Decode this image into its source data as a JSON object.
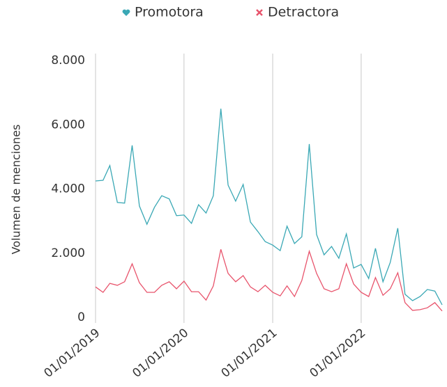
{
  "chart_data": {
    "type": "line",
    "y_label": "Volumen de menciones",
    "x": [
      "2019-01-01",
      "2019-02-01",
      "2019-03-01",
      "2019-04-01",
      "2019-05-01",
      "2019-06-01",
      "2019-07-01",
      "2019-08-01",
      "2019-09-01",
      "2019-10-01",
      "2019-11-01",
      "2019-12-01",
      "2020-01-01",
      "2020-02-01",
      "2020-03-01",
      "2020-04-01",
      "2020-05-01",
      "2020-06-01",
      "2020-07-01",
      "2020-08-01",
      "2020-09-01",
      "2020-10-01",
      "2020-11-01",
      "2020-12-01",
      "2021-01-01",
      "2021-02-01",
      "2021-03-01",
      "2021-04-01",
      "2021-05-01",
      "2021-06-01",
      "2021-07-01",
      "2021-08-01",
      "2021-09-01",
      "2021-10-01",
      "2021-11-01",
      "2021-12-01",
      "2022-01-01",
      "2022-02-01",
      "2022-03-01",
      "2022-04-01",
      "2022-05-01",
      "2022-06-01",
      "2022-07-01",
      "2022-08-01",
      "2022-09-01",
      "2022-10-01",
      "2022-11-01",
      "2022-12-01"
    ],
    "series": [
      {
        "name": "Promotora",
        "color": "#3aa8b5",
        "marker": "heart",
        "values": [
          4250,
          4270,
          4730,
          3580,
          3560,
          5360,
          3470,
          2900,
          3430,
          3790,
          3690,
          3170,
          3190,
          2930,
          3510,
          3250,
          3790,
          6500,
          4120,
          3620,
          4140,
          2970,
          2670,
          2360,
          2250,
          2080,
          2840,
          2300,
          2510,
          5400,
          2580,
          1950,
          2210,
          1840,
          2600,
          1540,
          1650,
          1210,
          2150,
          1110,
          1710,
          2780,
          720,
          520,
          650,
          870,
          820,
          390
        ]
      },
      {
        "name": "Detractora",
        "color": "#e8546c",
        "marker": "x",
        "values": [
          950,
          780,
          1060,
          1000,
          1110,
          1670,
          1080,
          780,
          780,
          1000,
          1110,
          890,
          1130,
          800,
          800,
          540,
          980,
          2120,
          1370,
          1110,
          1300,
          950,
          800,
          1000,
          780,
          670,
          980,
          650,
          1150,
          2060,
          1370,
          890,
          800,
          890,
          1670,
          1040,
          780,
          650,
          1240,
          690,
          890,
          1390,
          460,
          220,
          240,
          300,
          460,
          200
        ]
      }
    ],
    "xlim": [
      "2019-01-01",
      "2022-12-01"
    ],
    "xticks": [
      {
        "value": "2019-01-01",
        "label": "01/01/2019"
      },
      {
        "value": "2020-01-01",
        "label": "01/01/2020"
      },
      {
        "value": "2021-01-01",
        "label": "01/01/2021"
      },
      {
        "value": "2022-01-01",
        "label": "01/01/2022"
      }
    ],
    "ylim": [
      0,
      8000
    ],
    "yticks": [
      0,
      {
        "value": 2000,
        "label": "2.000"
      },
      {
        "value": 4000,
        "label": "4.000"
      },
      {
        "value": 6000,
        "label": "6.000"
      },
      {
        "value": 8000,
        "label": "8.000"
      }
    ],
    "grid": "x",
    "legend": "top"
  }
}
